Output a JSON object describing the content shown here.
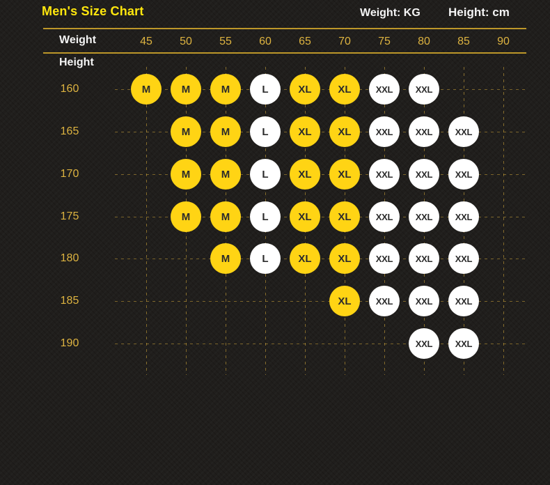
{
  "header": {
    "title": "Men's Size Chart",
    "weight_unit": "Weight: KG",
    "height_unit": "Height: cm"
  },
  "axes": {
    "weight_label": "Weight",
    "height_label": "Height"
  },
  "colors": {
    "background": "#201e1c",
    "title_yellow": "#ffe70d",
    "tick_gold": "#ddb340",
    "rule_gold": "#bd9729",
    "grid_dash_gold": "#d8ac3a",
    "circle_text": "#2b2b2b",
    "white_text": "#f4f4f4"
  },
  "chart_data": {
    "type": "table",
    "title": "Men's Size Chart",
    "xlabel": "Weight",
    "x_unit": "KG",
    "ylabel": "Height",
    "y_unit": "cm",
    "x_ticks": [
      45,
      50,
      55,
      60,
      65,
      70,
      75,
      80,
      85,
      90
    ],
    "y_ticks": [
      160,
      165,
      170,
      175,
      180,
      185,
      190
    ],
    "grid": "dashed",
    "cells": [
      {
        "height": 160,
        "sizes": [
          "M",
          "M",
          "M",
          "L",
          "XL",
          "XL",
          "XXL",
          "XXL",
          null,
          null
        ]
      },
      {
        "height": 165,
        "sizes": [
          null,
          "M",
          "M",
          "L",
          "XL",
          "XL",
          "XXL",
          "XXL",
          "XXL",
          null
        ]
      },
      {
        "height": 170,
        "sizes": [
          null,
          "M",
          "M",
          "L",
          "XL",
          "XL",
          "XXL",
          "XXL",
          "XXL",
          null
        ]
      },
      {
        "height": 175,
        "sizes": [
          null,
          "M",
          "M",
          "L",
          "XL",
          "XL",
          "XXL",
          "XXL",
          "XXL",
          null
        ]
      },
      {
        "height": 180,
        "sizes": [
          null,
          null,
          "M",
          "L",
          "XL",
          "XL",
          "XXL",
          "XXL",
          "XXL",
          null
        ]
      },
      {
        "height": 185,
        "sizes": [
          null,
          null,
          null,
          null,
          null,
          "XL",
          "XXL",
          "XXL",
          "XXL",
          null
        ]
      },
      {
        "height": 190,
        "sizes": [
          null,
          null,
          null,
          null,
          null,
          null,
          null,
          "XXL",
          "XXL",
          null
        ]
      }
    ],
    "size_fill": {
      "M": "#ffd414",
      "L": "#ffffff",
      "XL": "#ffd414",
      "XXL": "#ffffff"
    }
  }
}
